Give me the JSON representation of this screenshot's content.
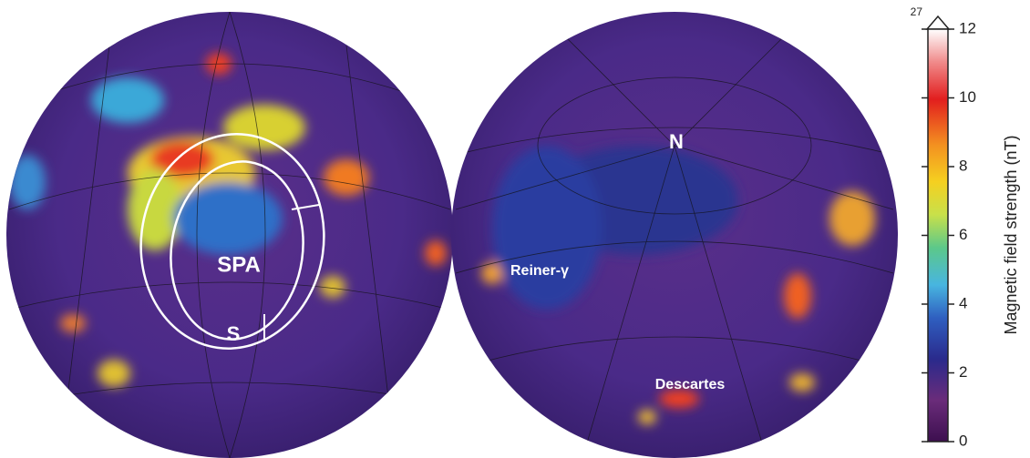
{
  "left_map": {
    "labels": [
      "SPA",
      "S"
    ]
  },
  "right_map": {
    "labels": [
      "N",
      "Reiner-γ",
      "Descartes"
    ]
  },
  "colorbar": {
    "title": "Magnetic field strength (nT)",
    "lim": [
      0,
      12
    ],
    "ticks": [
      0,
      2,
      4,
      6,
      8,
      10,
      12
    ],
    "overflow_label": 27
  }
}
